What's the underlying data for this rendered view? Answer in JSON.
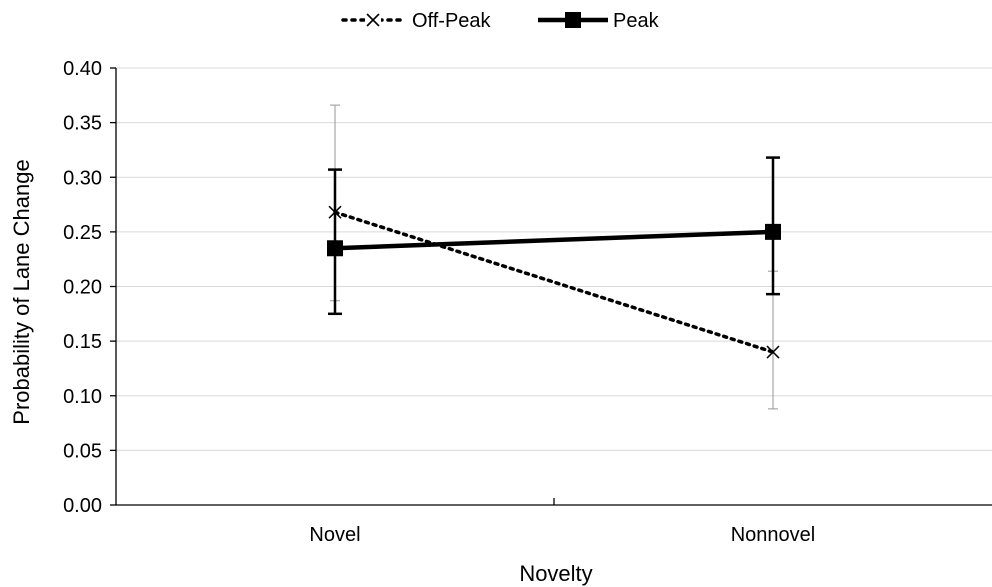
{
  "chart_data": {
    "type": "line",
    "categories": [
      "Novel",
      "Nonnovel"
    ],
    "xlabel": "Novelty",
    "ylabel": "Probability of Lane Change",
    "ylim": [
      0,
      0.4
    ],
    "yticks": [
      "0.00",
      "0.05",
      "0.10",
      "0.15",
      "0.20",
      "0.25",
      "0.30",
      "0.35",
      "0.40"
    ],
    "grid": "horizontal",
    "legend_position": "top-center",
    "series": [
      {
        "name": "Off-Peak",
        "values": [
          0.268,
          0.14
        ],
        "error_low": [
          0.187,
          0.088
        ],
        "error_high": [
          0.366,
          0.214
        ],
        "line_style": "dotted",
        "marker": "x",
        "color": "#000000"
      },
      {
        "name": "Peak",
        "values": [
          0.235,
          0.25
        ],
        "error_low": [
          0.175,
          0.193
        ],
        "error_high": [
          0.307,
          0.318
        ],
        "line_style": "solid",
        "marker": "square",
        "color": "#000000"
      }
    ]
  }
}
